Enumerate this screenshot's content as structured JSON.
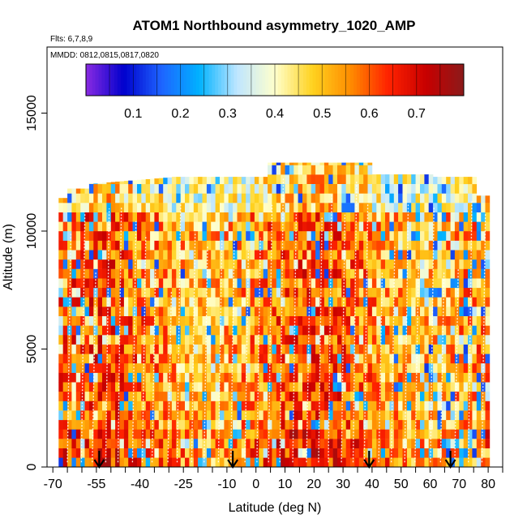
{
  "chart_data": {
    "type": "heatmap",
    "title": "ATOM1 Northbound asymmetry_1020_AMP",
    "flights_note": "Flts: 6,7,8,9",
    "dates_note": "MMDD: 0812,0815,0817,0820",
    "xlabel": "Latitude (deg N)",
    "ylabel": "Altitude (m)",
    "xlim": [
      -72,
      85
    ],
    "ylim": [
      0,
      17800
    ],
    "x_ticks": [
      -70,
      -55,
      -40,
      -25,
      -10,
      0,
      10,
      20,
      30,
      40,
      50,
      60,
      70,
      80
    ],
    "x_minor_ticks": [
      -65,
      -60,
      -50,
      -45,
      -35,
      -30,
      -20,
      -15,
      -5,
      5,
      15,
      25,
      35,
      45,
      55,
      65,
      75,
      85
    ],
    "y_ticks": [
      0,
      5000,
      10000,
      15000
    ],
    "colorbar": {
      "ticks": [
        0.1,
        0.2,
        0.3,
        0.4,
        0.5,
        0.6,
        0.7
      ],
      "range": [
        0.0,
        0.8
      ],
      "colors": [
        "#8a2be2",
        "#0000cd",
        "#1e64ff",
        "#00b2ff",
        "#bfe6ff",
        "#ffffcc",
        "#ffd21f",
        "#ff8c00",
        "#ff2200",
        "#c80000",
        "#8b1a1a"
      ]
    },
    "arrows_latitude": [
      -54,
      -8,
      39,
      67
    ],
    "data_description": "Gridded asymmetry values (0–0.8) binned by latitude and altitude; mostly 0.5–0.7 (orange/red) with blue patches near 0.1–0.3 at high latitudes and mid altitudes."
  }
}
